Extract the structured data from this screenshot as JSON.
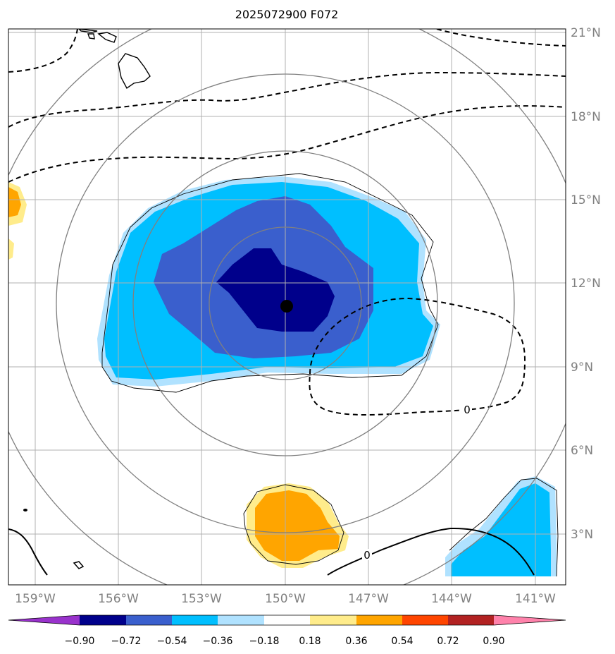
{
  "title": "2025072900 F072",
  "lon_ticks": [
    "159°W",
    "156°W",
    "153°W",
    "150°W",
    "147°W",
    "144°W",
    "141°W"
  ],
  "lat_ticks": [
    "21°N",
    "18°N",
    "15°N",
    "12°N",
    "9°N",
    "6°N",
    "3°N"
  ],
  "contour_labels": [
    "0",
    "0"
  ],
  "colorbar": {
    "labels": [
      "−0.90",
      "−0.72",
      "−0.54",
      "−0.36",
      "−0.18",
      "0.18",
      "0.36",
      "0.54",
      "0.72",
      "0.90"
    ],
    "colors": [
      "#9932cc",
      "#00008b",
      "#3a5fcd",
      "#00bfff",
      "#b0e2ff",
      "#ffffff",
      "#ffec8b",
      "#ffa500",
      "#ff4500",
      "#b22222",
      "#ff82ab"
    ]
  },
  "fill_colors": {
    "dark_blue": "#00008b",
    "royal_blue": "#3a5fcd",
    "sky_blue": "#00bfff",
    "light_blue": "#b0e2ff",
    "light_yellow": "#ffec8b",
    "orange": "#ffa500"
  },
  "center_marker": "storm-center"
}
